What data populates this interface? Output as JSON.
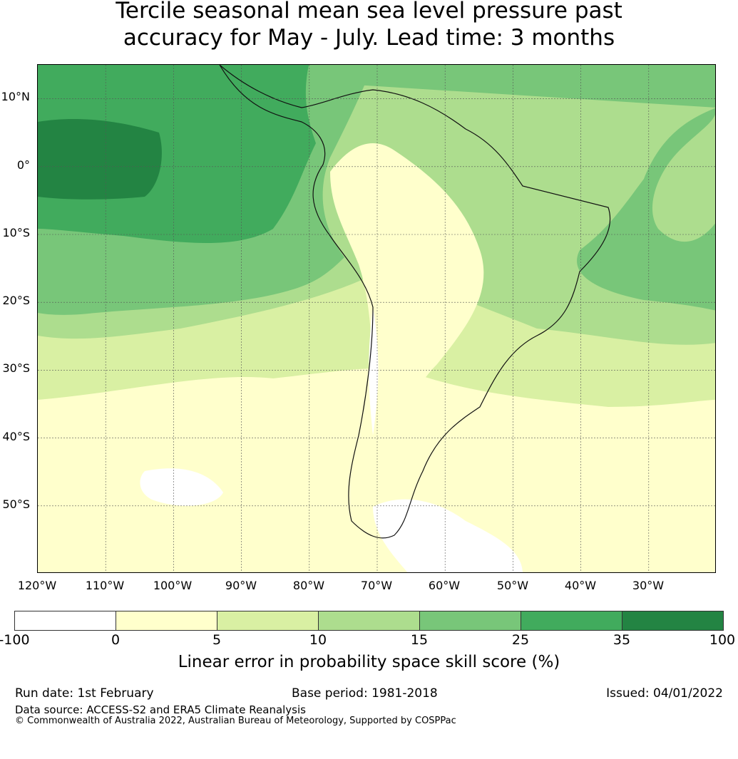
{
  "title": {
    "line1": "Tercile seasonal mean sea level pressure past",
    "line2": "accuracy for May - July. Lead time: 3 months"
  },
  "map": {
    "lat_labels": [
      "10°N",
      "0°",
      "10°S",
      "20°S",
      "30°S",
      "40°S",
      "50°S"
    ],
    "lon_labels": [
      "120°W",
      "110°W",
      "100°W",
      "90°W",
      "80°W",
      "70°W",
      "60°W",
      "50°W",
      "40°W",
      "30°W"
    ],
    "extent_lon": [
      -120,
      -20
    ],
    "extent_lat": [
      -60,
      15
    ]
  },
  "colorbar": {
    "ticks": [
      "-100",
      "0",
      "5",
      "10",
      "15",
      "25",
      "35",
      "100"
    ],
    "colors": [
      "#ffffff",
      "#ffffcc",
      "#d9f0a3",
      "#addd8e",
      "#78c679",
      "#41ab5d",
      "#238443"
    ],
    "label": "Linear error in probability space skill score (%)"
  },
  "footer": {
    "run_date": "Run date: 1st February",
    "base_period": "Base period: 1981-2018",
    "issued": "Issued: 04/01/2022",
    "data_source": "Data source: ACCESS-S2 and ERA5 Climate Reanalysis",
    "copyright": "© Commonwealth of Australia 2022, Australian Bureau of Meteorology, Supported by COSPPac"
  }
}
